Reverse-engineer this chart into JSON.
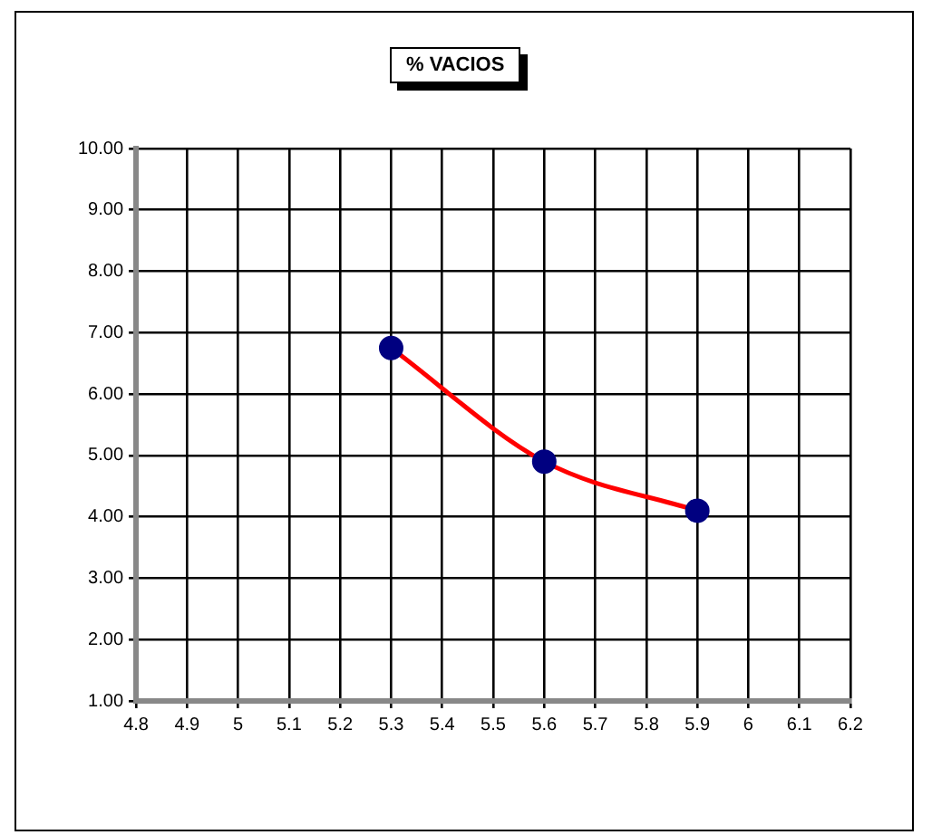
{
  "chart_data": {
    "type": "line",
    "title": "% VACIOS",
    "x": [
      5.3,
      5.6,
      5.9
    ],
    "series": [
      {
        "color": "#ff0000",
        "values": [
          6.75,
          4.9,
          4.1
        ]
      }
    ],
    "xlim": [
      4.8,
      6.2
    ],
    "xticks": [
      4.8,
      4.9,
      5,
      5.1,
      5.2,
      5.3,
      5.4,
      5.5,
      5.6,
      5.7,
      5.8,
      5.9,
      6,
      6.1,
      6.2
    ],
    "ylim": [
      1,
      10
    ],
    "yticks": [
      {
        "value": 1,
        "label": "1.00"
      },
      {
        "value": 2,
        "label": "2.00"
      },
      {
        "value": 3,
        "label": "3.00"
      },
      {
        "value": 4,
        "label": "4.00"
      },
      {
        "value": 5,
        "label": "5.00"
      },
      {
        "value": 6,
        "label": "6.00"
      },
      {
        "value": 7,
        "label": "7.00"
      },
      {
        "value": 8,
        "label": "8.00"
      },
      {
        "value": 9,
        "label": "9.00"
      },
      {
        "value": 10,
        "label": "10.00"
      }
    ],
    "grid": true,
    "marker": "circle",
    "line_style": "solid",
    "legend": false
  }
}
